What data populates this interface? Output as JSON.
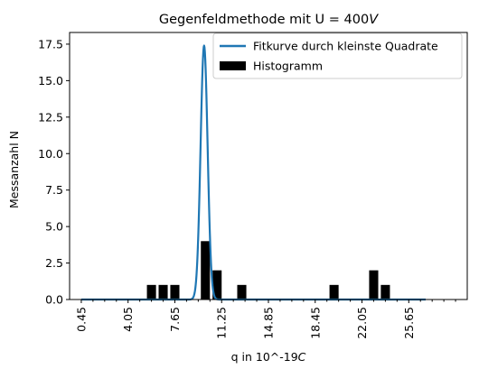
{
  "chart_data": {
    "type": "bar",
    "title": "Gegenfeldmethode mit U = 400V",
    "title_parts": {
      "main": "Gegenfeldmethode mit U = 400",
      "unit": "V"
    },
    "xlabel": "q in 10^-19C",
    "xlabel_parts": {
      "main": "q in 10^-19",
      "unit": "C"
    },
    "ylabel": "Messanzahl N",
    "xlim": [
      -0.45,
      30.15
    ],
    "ylim": [
      0,
      18.3
    ],
    "xticks": [
      0.45,
      4.05,
      7.65,
      11.25,
      14.85,
      18.45,
      22.05,
      25.65
    ],
    "xtick_labels": [
      "0.45",
      "4.05",
      "7.65",
      "11.25",
      "14.85",
      "18.45",
      "22.05",
      "25.65"
    ],
    "x_minor_ticks": [
      1.35,
      2.25,
      3.15,
      4.95,
      5.85,
      6.75,
      8.55,
      9.45,
      10.35,
      12.15,
      13.05,
      13.95,
      15.75,
      16.65,
      17.55,
      19.35,
      20.25,
      21.15,
      22.95,
      23.85,
      24.75,
      26.55,
      27.45,
      28.35,
      29.25
    ],
    "yticks": [
      0.0,
      2.5,
      5.0,
      7.5,
      10.0,
      12.5,
      15.0,
      17.5
    ],
    "ytick_labels": [
      "0.0",
      "2.5",
      "5.0",
      "7.5",
      "10.0",
      "12.5",
      "15.0",
      "17.5"
    ],
    "legend_position": "top-right",
    "series": [
      {
        "name": "Fitkurve durch kleinste Quadrate",
        "kind": "line",
        "color": "#1f77b4",
        "curve": {
          "amplitude": 17.4,
          "center": 9.9,
          "sigma": 0.27
        },
        "x_range": [
          0.45,
          26.95
        ]
      },
      {
        "name": "Histogramm",
        "kind": "bar",
        "color": "#000000",
        "bar_width": 0.7,
        "x": [
          5.85,
          6.75,
          7.65,
          10.0,
          10.9,
          12.8,
          19.9,
          22.95,
          23.85
        ],
        "values": [
          1,
          1,
          1,
          4,
          2,
          1,
          1,
          2,
          1
        ]
      }
    ]
  }
}
